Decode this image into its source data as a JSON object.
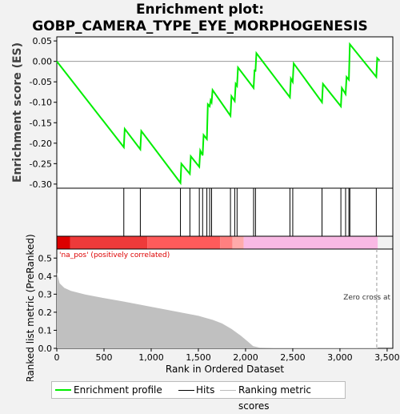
{
  "chart_data": {
    "type": "line",
    "title_lines": [
      "Enrichment plot:",
      "GOBP_CAMERA_TYPE_EYE_MORPHOGENESIS"
    ],
    "ylabel_top": "Enrichment score (ES)",
    "ylabel_bottom": "Ranked list metric (PreRanked)",
    "xlabel": "Rank in Ordered Dataset",
    "x_ticks": [
      0,
      500,
      1000,
      1500,
      2000,
      2500,
      3000,
      3500
    ],
    "x_tick_labels": [
      "0",
      "500",
      "1,000",
      "1,500",
      "2,000",
      "2,500",
      "3,000",
      "3,500"
    ],
    "xlim": [
      0,
      3560
    ],
    "es_ylim": [
      -0.31,
      0.06
    ],
    "es_y_ticks": [
      0.05,
      0.0,
      -0.05,
      -0.1,
      -0.15,
      -0.2,
      -0.25,
      -0.3
    ],
    "es_y_tick_labels": [
      "0.05",
      "0.00",
      "-0.05",
      "-0.10",
      "-0.15",
      "-0.20",
      "-0.25",
      "-0.30"
    ],
    "metric_ylim": [
      0,
      0.55
    ],
    "metric_y_ticks": [
      0.0,
      0.1,
      0.2,
      0.3,
      0.4,
      0.5
    ],
    "metric_y_tick_labels": [
      "0.0",
      "0.1",
      "0.2",
      "0.3",
      "0.4",
      "0.5"
    ],
    "series": [
      {
        "name": "Enrichment profile",
        "color": "#00ee00",
        "points": [
          [
            0,
            0.0
          ],
          [
            710,
            -0.21
          ],
          [
            720,
            -0.165
          ],
          [
            885,
            -0.215
          ],
          [
            895,
            -0.17
          ],
          [
            1310,
            -0.297
          ],
          [
            1320,
            -0.25
          ],
          [
            1410,
            -0.275
          ],
          [
            1420,
            -0.232
          ],
          [
            1510,
            -0.258
          ],
          [
            1520,
            -0.218
          ],
          [
            1545,
            -0.23
          ],
          [
            1555,
            -0.18
          ],
          [
            1590,
            -0.19
          ],
          [
            1600,
            -0.105
          ],
          [
            1620,
            -0.11
          ],
          [
            1630,
            -0.095
          ],
          [
            1640,
            -0.1
          ],
          [
            1650,
            -0.07
          ],
          [
            1840,
            -0.133
          ],
          [
            1850,
            -0.085
          ],
          [
            1885,
            -0.097
          ],
          [
            1895,
            -0.055
          ],
          [
            1910,
            -0.06
          ],
          [
            1920,
            -0.015
          ],
          [
            2085,
            -0.065
          ],
          [
            2095,
            -0.02
          ],
          [
            2105,
            -0.025
          ],
          [
            2115,
            0.02
          ],
          [
            2470,
            -0.088
          ],
          [
            2480,
            -0.042
          ],
          [
            2500,
            -0.05
          ],
          [
            2510,
            -0.005
          ],
          [
            2810,
            -0.1
          ],
          [
            2820,
            -0.055
          ],
          [
            3010,
            -0.11
          ],
          [
            3020,
            -0.065
          ],
          [
            3060,
            -0.08
          ],
          [
            3070,
            -0.038
          ],
          [
            3095,
            -0.045
          ],
          [
            3105,
            0.042
          ],
          [
            3385,
            -0.038
          ],
          [
            3395,
            0.008
          ],
          [
            3420,
            0.002
          ]
        ]
      }
    ],
    "hits": [
      710,
      885,
      1310,
      1410,
      1510,
      1545,
      1590,
      1620,
      1640,
      1840,
      1885,
      1910,
      2085,
      2105,
      2470,
      2500,
      2810,
      3010,
      3060,
      3095,
      3105,
      3385
    ],
    "metric_curve": [
      [
        0,
        0.42
      ],
      [
        30,
        0.36
      ],
      [
        80,
        0.335
      ],
      [
        150,
        0.318
      ],
      [
        300,
        0.298
      ],
      [
        500,
        0.278
      ],
      [
        700,
        0.26
      ],
      [
        900,
        0.24
      ],
      [
        1100,
        0.22
      ],
      [
        1300,
        0.2
      ],
      [
        1500,
        0.18
      ],
      [
        1650,
        0.158
      ],
      [
        1750,
        0.138
      ],
      [
        1850,
        0.108
      ],
      [
        1950,
        0.07
      ],
      [
        2030,
        0.035
      ],
      [
        2080,
        0.012
      ],
      [
        2150,
        0.004
      ],
      [
        2300,
        0.002
      ],
      [
        3400,
        0.002
      ]
    ],
    "heat_bands": [
      {
        "start": 0,
        "end": 140,
        "color": "#dd0000"
      },
      {
        "start": 140,
        "end": 960,
        "color": "#ee3a3a"
      },
      {
        "start": 960,
        "end": 1730,
        "color": "#ff5b5b"
      },
      {
        "start": 1730,
        "end": 1860,
        "color": "#ff8080"
      },
      {
        "start": 1860,
        "end": 1980,
        "color": "#ffaaaa"
      },
      {
        "start": 1980,
        "end": 3400,
        "color": "#f9b9e4"
      }
    ],
    "zero_cross_x": 3390,
    "annotations": {
      "positive_label": "'na_pos' (positively correlated)",
      "zero_cross": "Zero cross at"
    },
    "legend": {
      "placement": "bottom",
      "items": [
        {
          "label": "Enrichment profile",
          "color": "#00ee00"
        },
        {
          "label": "Hits",
          "color": "#000000"
        },
        {
          "label": "Ranking metric scores",
          "color": "#bbbbbb"
        }
      ]
    }
  }
}
